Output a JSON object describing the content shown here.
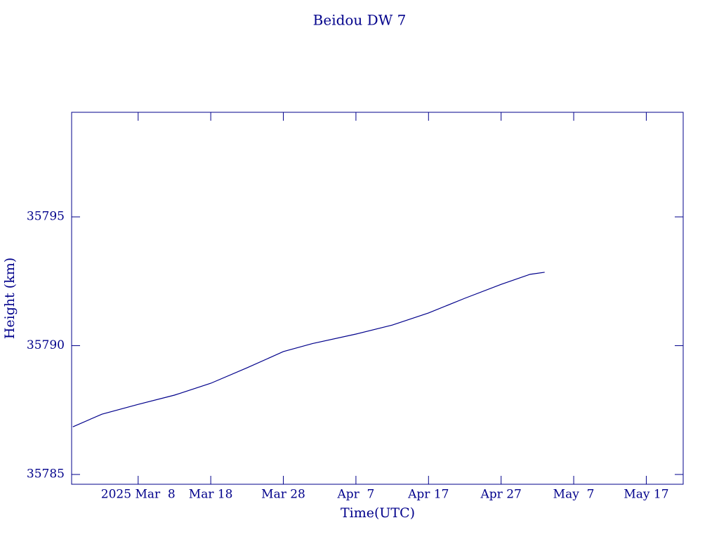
{
  "chart_data": {
    "type": "line",
    "title": "Beidou DW 7",
    "x_label": "Time(UTC)",
    "y_label": "Height (km)",
    "x": [
      "2025-02-27",
      "2025-03-03",
      "2025-03-08",
      "2025-03-13",
      "2025-03-18",
      "2025-03-23",
      "2025-03-28",
      "2025-04-01",
      "2025-04-07",
      "2025-04-12",
      "2025-04-17",
      "2025-04-22",
      "2025-04-27",
      "2025-05-01",
      "2025-05-03"
    ],
    "series": [
      {
        "name": "Height",
        "color": "#00008b",
        "values": [
          35786.85,
          35787.34,
          35787.72,
          35788.08,
          35788.54,
          35789.14,
          35789.77,
          35790.08,
          35790.45,
          35790.8,
          35791.27,
          35791.84,
          35792.38,
          35792.77,
          35792.85
        ]
      }
    ],
    "xlim": [
      "2025-02-26T20:00",
      "2025-05-22T02:00"
    ],
    "xticks": [
      {
        "value": "2025-03-08",
        "label": "2025 Mar  8"
      },
      {
        "value": "2025-03-18",
        "label": "Mar 18"
      },
      {
        "value": "2025-03-28",
        "label": "Mar 28"
      },
      {
        "value": "2025-04-07",
        "label": "Apr  7"
      },
      {
        "value": "2025-04-17",
        "label": "Apr 17"
      },
      {
        "value": "2025-04-27",
        "label": "Apr 27"
      },
      {
        "value": "2025-05-07",
        "label": "May  7"
      },
      {
        "value": "2025-05-17",
        "label": "May 17"
      }
    ],
    "ylim": [
      35784.62,
      35799.06
    ],
    "yticks": [
      35785,
      35790,
      35795
    ],
    "grid": false
  }
}
